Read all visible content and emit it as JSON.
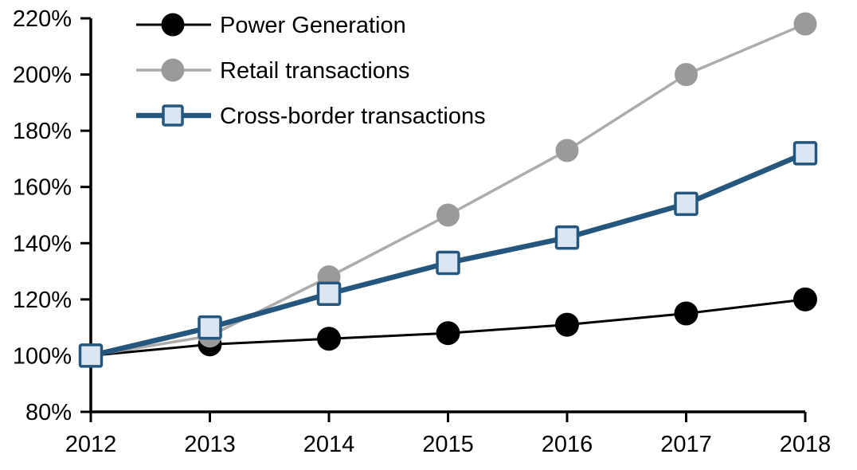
{
  "chart_data": {
    "type": "line",
    "title": "",
    "xlabel": "",
    "ylabel": "",
    "unit": "%",
    "categories": [
      "2012",
      "2013",
      "2014",
      "2015",
      "2016",
      "2017",
      "2018"
    ],
    "series": [
      {
        "name": "Power Generation",
        "values": [
          100,
          104,
          106,
          108,
          111,
          115,
          120
        ],
        "color": "#000000",
        "marker": "circle",
        "marker_color": "#000000",
        "line_width": 3
      },
      {
        "name": "Retail transactions",
        "values": [
          100,
          107,
          128,
          150,
          173,
          200,
          218
        ],
        "color": "#ACACAC",
        "marker": "circle",
        "marker_color": "#9A9A9A",
        "line_width": 3.5
      },
      {
        "name": "Cross-border transactions",
        "values": [
          100,
          110,
          122,
          133,
          142,
          154,
          172
        ],
        "color": "#24567E",
        "marker": "square",
        "marker_color": "#DCE6F2",
        "marker_border": "#24567E",
        "line_width": 6.5
      }
    ],
    "ylim": [
      80,
      220
    ],
    "y_tick_values": [
      220,
      200,
      180,
      160,
      140,
      120,
      100,
      80
    ],
    "y_ticks": [
      "220%",
      "200%",
      "180%",
      "160%",
      "140%",
      "120%",
      "100%",
      "80%"
    ],
    "grid": false,
    "legend_position": "top-left",
    "axis_color": "#000000",
    "background_color": "#FFFFFF"
  }
}
